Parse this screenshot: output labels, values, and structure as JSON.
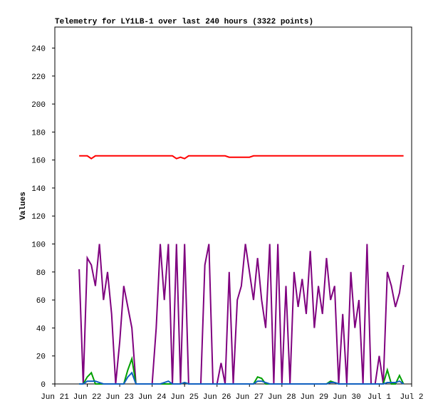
{
  "chart_data": {
    "type": "line",
    "title": "Telemetry for LY1LB-1 over last 240 hours (3322 points)",
    "ylabel": "Values",
    "xlim": [
      0,
      11
    ],
    "xticks": [
      {
        "value": 0,
        "label": "Jun 21"
      },
      {
        "value": 1,
        "label": "Jun 22"
      },
      {
        "value": 2,
        "label": "Jun 23"
      },
      {
        "value": 3,
        "label": "Jun 24"
      },
      {
        "value": 4,
        "label": "Jun 25"
      },
      {
        "value": 5,
        "label": "Jun 26"
      },
      {
        "value": 6,
        "label": "Jun 27"
      },
      {
        "value": 7,
        "label": "Jun 28"
      },
      {
        "value": 8,
        "label": "Jun 29"
      },
      {
        "value": 9,
        "label": "Jun 30"
      },
      {
        "value": 10,
        "label": "Jul 1"
      },
      {
        "value": 11,
        "label": "Jul 2"
      }
    ],
    "ylim": [
      0,
      255
    ],
    "yticks": [
      0,
      20,
      40,
      60,
      80,
      100,
      120,
      140,
      160,
      180,
      200,
      220,
      240
    ],
    "x": [
      0.75,
      0.875,
      1,
      1.125,
      1.25,
      1.375,
      1.5,
      1.625,
      1.75,
      1.875,
      2,
      2.125,
      2.25,
      2.375,
      2.5,
      2.625,
      2.75,
      2.875,
      3,
      3.125,
      3.25,
      3.375,
      3.5,
      3.625,
      3.75,
      3.875,
      4,
      4.125,
      4.25,
      4.375,
      4.5,
      4.625,
      4.75,
      4.875,
      5,
      5.125,
      5.25,
      5.375,
      5.5,
      5.625,
      5.75,
      5.875,
      6,
      6.125,
      6.25,
      6.375,
      6.5,
      6.625,
      6.75,
      6.875,
      7,
      7.125,
      7.25,
      7.375,
      7.5,
      7.625,
      7.75,
      7.875,
      8,
      8.125,
      8.25,
      8.375,
      8.5,
      8.625,
      8.75,
      8.875,
      9,
      9.125,
      9.25,
      9.375,
      9.5,
      9.625,
      9.75,
      9.875,
      10,
      10.125,
      10.25,
      10.375,
      10.5,
      10.625,
      10.75
    ],
    "series": [
      {
        "color": "#7f007f",
        "values": [
          82,
          0,
          90,
          85,
          70,
          100,
          60,
          80,
          50,
          0,
          30,
          70,
          55,
          40,
          0,
          0,
          0,
          0,
          0,
          40,
          100,
          60,
          100,
          0,
          100,
          0,
          100,
          0,
          0,
          0,
          0,
          85,
          100,
          0,
          0,
          15,
          0,
          80,
          0,
          60,
          70,
          100,
          80,
          60,
          90,
          60,
          40,
          100,
          0,
          100,
          0,
          70,
          0,
          80,
          55,
          75,
          50,
          95,
          40,
          70,
          50,
          90,
          60,
          70,
          0,
          50,
          0,
          80,
          40,
          60,
          0,
          100,
          0,
          0,
          20,
          0,
          80,
          70,
          55,
          65,
          85
        ]
      },
      {
        "color": "#ff0000",
        "values": [
          163,
          163,
          163,
          161,
          163,
          163,
          163,
          163,
          163,
          163,
          163,
          163,
          163,
          163,
          163,
          163,
          163,
          163,
          163,
          163,
          163,
          163,
          163,
          163,
          161,
          162,
          161,
          163,
          163,
          163,
          163,
          163,
          163,
          163,
          163,
          163,
          163,
          162,
          162,
          162,
          162,
          162,
          162,
          163,
          163,
          163,
          163,
          163,
          163,
          163,
          163,
          163,
          163,
          163,
          163,
          163,
          163,
          163,
          163,
          163,
          163,
          163,
          163,
          163,
          163,
          163,
          163,
          163,
          163,
          163,
          163,
          163,
          163,
          163,
          163,
          163,
          163,
          163,
          163,
          163,
          163
        ]
      },
      {
        "color": "#00a000",
        "values": [
          0,
          0,
          5,
          8,
          0,
          0,
          0,
          0,
          0,
          0,
          0,
          0,
          10,
          18,
          0,
          0,
          0,
          0,
          0,
          0,
          0,
          0,
          0,
          0,
          0,
          0,
          1,
          0,
          0,
          0,
          0,
          0,
          0,
          0,
          0,
          0,
          0,
          0,
          0,
          0,
          0,
          0,
          0,
          0,
          5,
          4,
          0,
          0,
          0,
          0,
          0,
          0,
          0,
          0,
          0,
          0,
          0,
          0,
          0,
          0,
          0,
          0,
          2,
          1,
          0,
          0,
          0,
          0,
          0,
          0,
          0,
          0,
          0,
          0,
          0,
          0,
          10,
          0,
          0,
          6,
          0
        ]
      },
      {
        "color": "#1060c0",
        "values": [
          0,
          0,
          2,
          2,
          2,
          1,
          0,
          0,
          0,
          0,
          0,
          0,
          5,
          8,
          0,
          0,
          0,
          0,
          0,
          0,
          0,
          1,
          2,
          0,
          0,
          0,
          1,
          0,
          0,
          0,
          0,
          0,
          0,
          0,
          0,
          0,
          0,
          0,
          0,
          0,
          0,
          0,
          0,
          0,
          2,
          2,
          1,
          0,
          0,
          0,
          0,
          0,
          0,
          0,
          0,
          0,
          0,
          0,
          0,
          0,
          0,
          0,
          1,
          1,
          0,
          0,
          0,
          0,
          0,
          0,
          0,
          0,
          0,
          0,
          0,
          0,
          1,
          1,
          1,
          2,
          0
        ]
      }
    ]
  }
}
